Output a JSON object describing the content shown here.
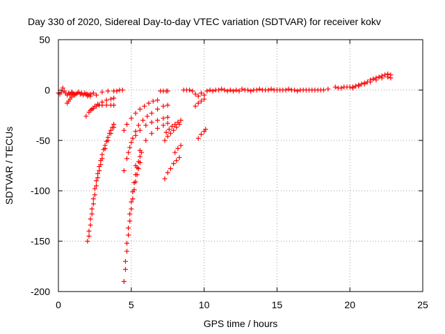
{
  "chart_data": {
    "type": "scatter",
    "title": "Day 330 of 2020, Sidereal Day-to-day VTEC variation (SDTVAR) for receiver kokv",
    "xlabel": "GPS time / hours",
    "ylabel": "SDTVAR / TECUs",
    "xlim": [
      0,
      25
    ],
    "ylim": [
      -200,
      50
    ],
    "xticks": [
      "0",
      "5",
      "10",
      "15",
      "20",
      "25"
    ],
    "xtick_values": [
      0,
      5,
      10,
      15,
      20,
      25
    ],
    "yticks": [
      "50",
      "0",
      "-50",
      "-100",
      "-150",
      "-200"
    ],
    "ytick_values": [
      50,
      0,
      -50,
      -100,
      -150,
      -200
    ],
    "grid": true,
    "marker": "+",
    "color": "#ff0000",
    "series": [
      {
        "name": "flat-left",
        "x": [
          0.0,
          0.1,
          0.2,
          0.3,
          0.4,
          0.5,
          0.6,
          0.7,
          0.8,
          0.9,
          1.0,
          1.1,
          1.2,
          1.3,
          1.4,
          1.5,
          1.6,
          1.7,
          1.8,
          1.9,
          2.0,
          2.1,
          2.2
        ],
        "y": [
          -3,
          -4,
          -2,
          2,
          -1,
          -3,
          -5,
          -3,
          -4,
          -2,
          -3,
          -5,
          -4,
          -3,
          -2,
          -4,
          -3,
          -5,
          -3,
          -4,
          -6,
          -5,
          -4
        ]
      },
      {
        "name": "flat-early-2",
        "x": [
          2.0,
          2.2,
          2.4,
          2.6,
          3.0,
          3.4,
          3.8,
          4.0,
          4.2,
          4.4
        ],
        "y": [
          -4,
          -6,
          -3,
          -5,
          -2,
          -1,
          -1,
          -1,
          0,
          0
        ]
      },
      {
        "name": "early-drop",
        "x": [
          0.6,
          0.7,
          0.8,
          0.9,
          1.0,
          1.1
        ],
        "y": [
          -13,
          -11,
          -9,
          -7,
          -5,
          -4
        ]
      },
      {
        "name": "arc-a",
        "x": [
          1.9,
          2.1,
          2.3,
          2.5,
          2.7,
          3.0,
          3.3,
          3.6,
          3.8
        ],
        "y": [
          -26,
          -22,
          -19,
          -16,
          -14,
          -12,
          -10,
          -9,
          -8
        ]
      },
      {
        "name": "arc-b",
        "x": [
          2.2,
          2.4,
          2.6,
          2.8,
          3.0,
          3.3,
          3.6,
          3.8
        ],
        "y": [
          -20,
          -18,
          -16,
          -15,
          -15,
          -15,
          -15,
          -15
        ]
      },
      {
        "name": "deep-1",
        "x": [
          2.0,
          2.1,
          2.2,
          2.3,
          2.4,
          2.5,
          2.6,
          2.7,
          2.8,
          2.9,
          3.0,
          3.1,
          3.2,
          3.3,
          3.4,
          3.5,
          3.6,
          3.7,
          3.8
        ],
        "y": [
          -150,
          -140,
          -128,
          -118,
          -108,
          -98,
          -90,
          -83,
          -76,
          -70,
          -64,
          -59,
          -55,
          -51,
          -47,
          -43,
          -40,
          -37,
          -34
        ]
      },
      {
        "name": "deep-1b",
        "x": [
          2.1,
          2.2,
          2.3,
          2.4,
          2.5,
          2.6,
          2.7,
          2.8,
          2.9,
          3.0,
          3.2,
          3.4,
          3.6,
          3.8
        ],
        "y": [
          -145,
          -134,
          -123,
          -113,
          -104,
          -95,
          -87,
          -80,
          -74,
          -68,
          -58,
          -50,
          -43,
          -37
        ]
      },
      {
        "name": "deep-2",
        "x": [
          4.5,
          4.6,
          4.7,
          4.8,
          4.9,
          5.0,
          5.1,
          5.2,
          5.3,
          5.4,
          5.5,
          5.6,
          5.7
        ],
        "y": [
          -190,
          -170,
          -152,
          -137,
          -123,
          -111,
          -101,
          -92,
          -84,
          -77,
          -71,
          -66,
          -62
        ]
      },
      {
        "name": "deep-2b",
        "x": [
          4.6,
          4.7,
          4.8,
          4.9,
          5.0,
          5.1,
          5.2,
          5.3,
          5.4,
          5.5,
          5.6
        ],
        "y": [
          -178,
          -160,
          -144,
          -130,
          -118,
          -108,
          -99,
          -91,
          -84,
          -78,
          -72
        ]
      },
      {
        "name": "arc-c",
        "x": [
          4.5,
          4.7,
          4.9,
          5.1,
          5.3,
          5.5,
          5.8,
          6.1,
          6.4,
          6.8,
          7.2,
          7.5
        ],
        "y": [
          -80,
          -68,
          -57,
          -48,
          -41,
          -35,
          -30,
          -26,
          -23,
          -19,
          -16,
          -15
        ]
      },
      {
        "name": "arc-d",
        "x": [
          4.5,
          4.7,
          5.0,
          5.3,
          5.6,
          5.9,
          6.2,
          6.5,
          6.8
        ],
        "y": [
          -40,
          -34,
          -28,
          -23,
          -19,
          -16,
          -13,
          -11,
          -10
        ]
      },
      {
        "name": "arc-e",
        "x": [
          4.8,
          5.0,
          5.3,
          5.6,
          6.0,
          6.4,
          6.8,
          7.2,
          7.5
        ],
        "y": [
          -62,
          -52,
          -45,
          -40,
          -35,
          -32,
          -30,
          -28,
          -27
        ]
      },
      {
        "name": "arc-f",
        "x": [
          5.3,
          5.6,
          6.0,
          6.4,
          6.8,
          7.2,
          7.5
        ],
        "y": [
          -75,
          -60,
          -50,
          -43,
          -38,
          -35,
          -33
        ]
      },
      {
        "name": "arc-g",
        "x": [
          7.3,
          7.5,
          7.7,
          7.9,
          8.1,
          8.3
        ],
        "y": [
          -88,
          -82,
          -78,
          -73,
          -70,
          -67
        ]
      },
      {
        "name": "arc-h",
        "x": [
          7.3,
          7.5,
          7.7,
          7.9,
          8.1,
          8.3
        ],
        "y": [
          -50,
          -46,
          -43,
          -40,
          -37,
          -34
        ]
      },
      {
        "name": "arc-i",
        "x": [
          7.4,
          7.6,
          7.8,
          8.0,
          8.2,
          8.4
        ],
        "y": [
          -42,
          -39,
          -36,
          -34,
          -32,
          -30
        ]
      },
      {
        "name": "arc-j",
        "x": [
          8.0,
          8.2,
          8.4
        ],
        "y": [
          -62,
          -58,
          -55
        ]
      },
      {
        "name": "arc-k",
        "x": [
          9.6,
          9.8,
          10.0,
          10.1
        ],
        "y": [
          -48,
          -44,
          -41,
          -39
        ]
      },
      {
        "name": "arc-l",
        "x": [
          9.4,
          9.6,
          9.8,
          10.0
        ],
        "y": [
          -16,
          -13,
          -11,
          -9
        ]
      },
      {
        "name": "short-mid",
        "x": [
          7.0,
          7.2,
          7.4,
          7.5
        ],
        "y": [
          -1,
          -1,
          -1,
          -1
        ]
      },
      {
        "name": "flat-mid",
        "x": [
          8.6,
          8.8,
          9.0,
          9.2,
          9.4,
          9.6,
          9.8,
          10.0,
          10.2,
          10.4,
          10.6,
          10.8,
          11.0,
          11.2,
          11.4,
          11.6,
          11.8,
          12.0,
          12.2,
          12.4,
          12.6,
          12.8,
          13.0,
          13.2,
          13.4,
          13.6,
          13.8,
          14.0,
          14.2,
          14.4,
          14.6,
          14.8,
          15.0,
          15.2,
          15.4,
          15.6,
          15.8,
          16.0,
          16.2,
          16.4,
          16.6,
          16.8,
          17.0,
          17.2,
          17.4,
          17.6,
          17.8,
          18.0,
          18.2,
          18.5
        ],
        "y": [
          0,
          0,
          0,
          -1,
          -4,
          -6,
          -3,
          -5,
          -1,
          0,
          -1,
          0,
          0,
          1,
          0,
          -1,
          0,
          -1,
          0,
          -1,
          1,
          0,
          0,
          -1,
          0,
          0,
          1,
          0,
          0,
          0,
          1,
          0,
          0,
          0,
          0,
          0,
          1,
          0,
          0,
          -1,
          0,
          0,
          0,
          0,
          0,
          0,
          0,
          0,
          0,
          1
        ]
      },
      {
        "name": "rise-right",
        "x": [
          19.0,
          19.2,
          19.4,
          19.6,
          19.8,
          20.0,
          20.2,
          20.4,
          20.6,
          20.8,
          21.0,
          21.2,
          21.4,
          21.6,
          21.8,
          22.0,
          22.2,
          22.4,
          22.6,
          22.8
        ],
        "y": [
          3,
          2,
          2,
          3,
          3,
          3,
          3,
          4,
          5,
          6,
          7,
          8,
          10,
          11,
          12,
          13,
          14,
          15,
          16,
          15
        ]
      },
      {
        "name": "rise-right-b",
        "x": [
          20.2,
          20.6,
          21.0,
          21.4,
          21.8,
          22.2,
          22.6,
          22.8
        ],
        "y": [
          2,
          4,
          6,
          8,
          10,
          12,
          13,
          12
        ]
      }
    ]
  }
}
